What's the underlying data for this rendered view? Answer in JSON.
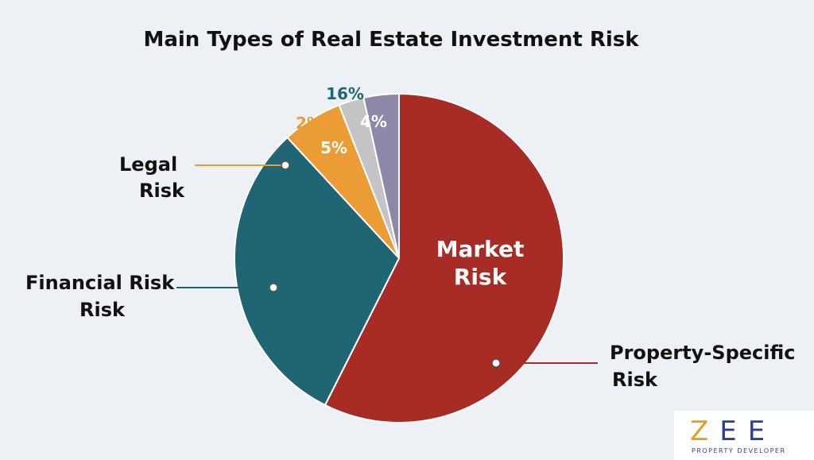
{
  "chart_data": {
    "type": "pie",
    "title": "Main Types of Real Estate Investment Risk",
    "slices": [
      {
        "label": "Market Risk",
        "value": 58,
        "color": "#a72c26"
      },
      {
        "label": "Financial Risk Risk",
        "value": 31,
        "color": "#1f6573"
      },
      {
        "label": "Legal Risk",
        "value": 6,
        "color": "#ec9c35"
      },
      {
        "label": "",
        "value": 2.5,
        "color": "#c4c4c6"
      },
      {
        "label": "",
        "value": 3.5,
        "color": "#8d88a8"
      }
    ],
    "annotations": {
      "pct_16": "16%",
      "pct_2": "2%",
      "pct_5": "5%",
      "pct_4": "4%",
      "legal_line1": "Legal",
      "legal_line2": "Risk",
      "financial_line1": "Financial Risk",
      "financial_line2": "Risk",
      "market_line1": "Market",
      "market_line2": "Risk",
      "property_line1": "Property-Specific",
      "property_line2": "Risk"
    },
    "legend": "none"
  },
  "logo": {
    "mark_z": "Z",
    "mark_rest": "EE",
    "subtitle": "PROPERTY DEVELOPER"
  }
}
